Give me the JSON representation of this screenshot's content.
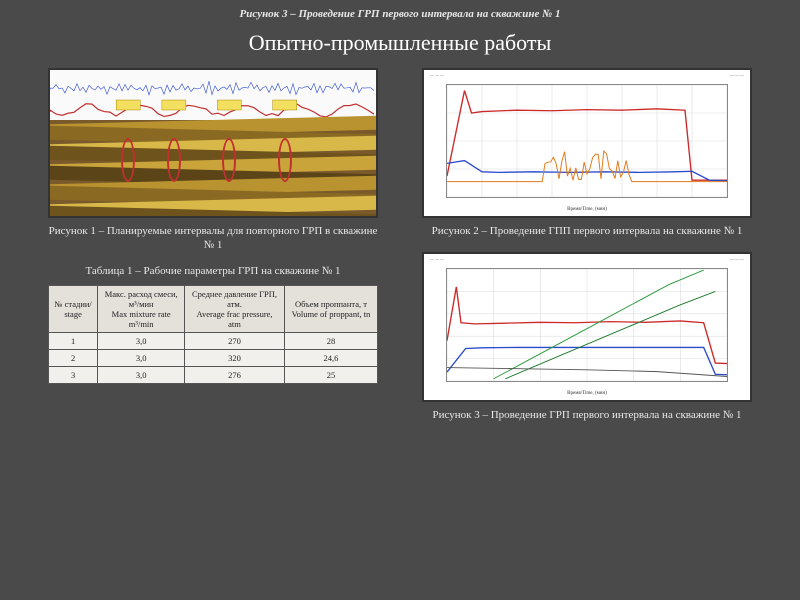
{
  "header_caption": "Рисунок 3 – Проведение ГРП первого интервала  на скважине № 1",
  "main_title": "Опытно-промышленные работы",
  "figure1": {
    "caption": "Рисунок 1 – Планируемые интервалы для повторного ГРП в скважине № 1",
    "type": "seismic-cross-section",
    "strata_colors": [
      "#b8932f",
      "#8a6a22",
      "#d9b84a",
      "#6e531c",
      "#c9a43a",
      "#5a4418",
      "#b8932f",
      "#8a6a22",
      "#d9b84a",
      "#6e531c"
    ],
    "top_trace_color": "#c03030",
    "marker_color": "#c03030",
    "marker_positions_pct": [
      24,
      38,
      55,
      72
    ],
    "background_top": "#fafafa"
  },
  "figure2": {
    "caption": "Рисунок 2 –  Проведение ГПП первого интервала на скважине № 1",
    "type": "line",
    "xlabel": "Время/Time, (мин)",
    "xlim": [
      0,
      80
    ],
    "xtick_step": 10,
    "ylim": [
      0,
      400
    ],
    "ytick_step": 100,
    "background_color": "#ffffff",
    "grid_color": "#dddddd",
    "series": {
      "red": {
        "color": "#cc2a2a",
        "width": 1.4,
        "points": [
          [
            0,
            75
          ],
          [
            5,
            380
          ],
          [
            7,
            300
          ],
          [
            10,
            305
          ],
          [
            20,
            310
          ],
          [
            30,
            308
          ],
          [
            40,
            312
          ],
          [
            50,
            310
          ],
          [
            60,
            315
          ],
          [
            68,
            310
          ],
          [
            70,
            60
          ],
          [
            80,
            60
          ]
        ]
      },
      "blue": {
        "color": "#2a4acc",
        "width": 1.4,
        "points": [
          [
            0,
            120
          ],
          [
            5,
            130
          ],
          [
            10,
            90
          ],
          [
            15,
            88
          ],
          [
            25,
            90
          ],
          [
            35,
            88
          ],
          [
            45,
            90
          ],
          [
            55,
            88
          ],
          [
            65,
            90
          ],
          [
            70,
            92
          ],
          [
            75,
            60
          ],
          [
            80,
            58
          ]
        ]
      },
      "orange": {
        "color": "#e07a1a",
        "width": 1.0,
        "burst_x": [
          28,
          52
        ],
        "burst_amp": 110,
        "base": 55
      }
    }
  },
  "figure3": {
    "caption": "Рисунок 3 – Проведение ГРП первого интервала на скважине № 1",
    "type": "line",
    "xlabel": "Время/Time, (мин)",
    "xlim": [
      0,
      120
    ],
    "xtick_step": 20,
    "ylim": [
      0,
      500
    ],
    "ytick_step": 100,
    "background_color": "#ffffff",
    "grid_color": "#dddddd",
    "series": {
      "red": {
        "color": "#cc2a2a",
        "width": 1.4,
        "points": [
          [
            0,
            180
          ],
          [
            4,
            420
          ],
          [
            6,
            260
          ],
          [
            12,
            255
          ],
          [
            25,
            258
          ],
          [
            40,
            262
          ],
          [
            55,
            260
          ],
          [
            70,
            265
          ],
          [
            85,
            262
          ],
          [
            100,
            268
          ],
          [
            110,
            260
          ],
          [
            115,
            80
          ],
          [
            120,
            78
          ]
        ]
      },
      "blue": {
        "color": "#2a4acc",
        "width": 1.4,
        "points": [
          [
            0,
            40
          ],
          [
            8,
            145
          ],
          [
            15,
            148
          ],
          [
            30,
            150
          ],
          [
            50,
            150
          ],
          [
            70,
            150
          ],
          [
            90,
            150
          ],
          [
            105,
            150
          ],
          [
            110,
            150
          ],
          [
            115,
            30
          ],
          [
            120,
            28
          ]
        ]
      },
      "green1": {
        "color": "#2a9a3a",
        "width": 1.0,
        "points": [
          [
            20,
            10
          ],
          [
            45,
            150
          ],
          [
            70,
            290
          ],
          [
            95,
            430
          ],
          [
            110,
            495
          ]
        ]
      },
      "green2": {
        "color": "#1a7a2a",
        "width": 1.0,
        "points": [
          [
            25,
            10
          ],
          [
            50,
            120
          ],
          [
            75,
            230
          ],
          [
            100,
            340
          ],
          [
            115,
            400
          ]
        ]
      },
      "grey": {
        "color": "#555555",
        "width": 1.0,
        "points": [
          [
            0,
            60
          ],
          [
            30,
            55
          ],
          [
            60,
            50
          ],
          [
            90,
            42
          ],
          [
            120,
            20
          ]
        ]
      }
    }
  },
  "table": {
    "caption": "Таблица 1 – Рабочие параметры ГРП на скважине № 1",
    "columns": [
      "№ стадии/\nstage",
      "Макс. расход смеси,\nм³/мин\nMax mixture rate\nm³/min",
      "Среднее давление ГРП,\nатм.\nAverage frac pressure,\natm",
      "Объем проппанта, т\nVolume of proppant, tn"
    ],
    "rows": [
      [
        "1",
        "3,0",
        "270",
        "28"
      ],
      [
        "2",
        "3,0",
        "320",
        "24,6"
      ],
      [
        "3",
        "3,0",
        "276",
        "25"
      ]
    ],
    "header_bg": "#e4e0da",
    "cell_bg": "#f2f0ed",
    "border_color": "#555555"
  }
}
